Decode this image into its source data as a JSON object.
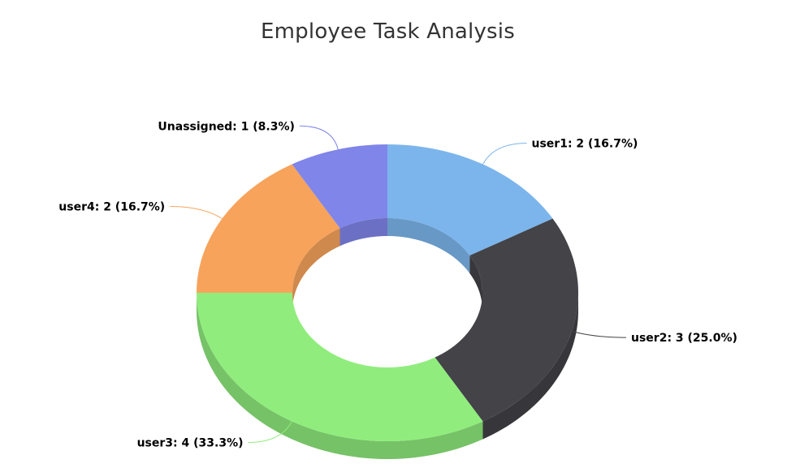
{
  "chart_data": {
    "type": "pie",
    "variant": "3d-donut",
    "title": "Employee Task Analysis",
    "categories": [
      "user1",
      "user2",
      "user3",
      "user4",
      "Unassigned"
    ],
    "values": [
      2,
      3,
      4,
      2,
      1
    ],
    "percentages": [
      16.7,
      25.0,
      33.3,
      16.7,
      8.3
    ],
    "labels": [
      "user1: 2 (16.7%)",
      "user2: 3 (25.0%)",
      "user3: 4 (33.3%)",
      "user4: 2 (16.7%)",
      "Unassigned: 1 (8.3%)"
    ],
    "colors": [
      "#7cb5ec",
      "#434348",
      "#90ed7d",
      "#f7a35c",
      "#8085e9"
    ],
    "legend": false
  }
}
